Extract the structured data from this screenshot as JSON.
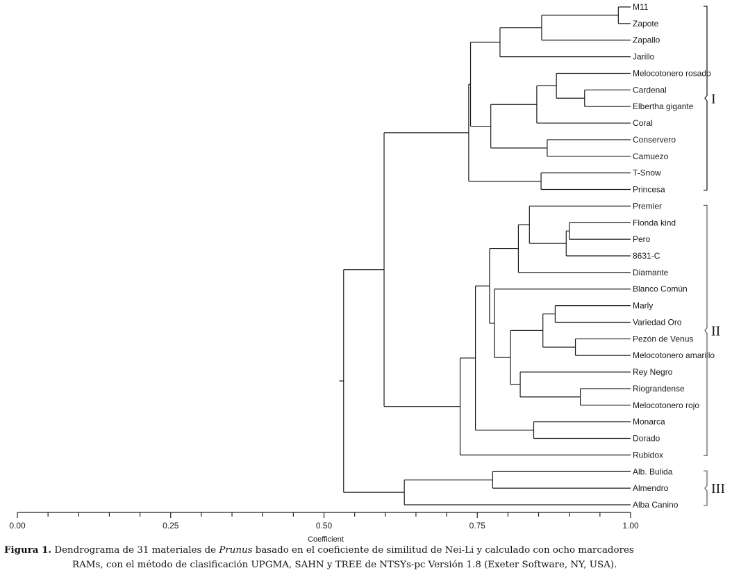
{
  "chart_data": {
    "type": "dendrogram",
    "xlabel": "Coefficient",
    "xlim": [
      0.0,
      1.0
    ],
    "ticks": [
      "0.00",
      "0.25",
      "0.50",
      "0.75",
      "1.00"
    ],
    "minor_tick_step": 0.05,
    "leaves": [
      "M11",
      "Zapote",
      "Zapallo",
      "Jarillo",
      "Melocotonero rosado",
      "Cardenal",
      "Elbertha gigante",
      "Coral",
      "Conservero",
      "Camuezo",
      "T-Snow",
      "Princesa",
      "Premier",
      "Flonda kind",
      "Pero",
      "8631-C",
      "Diamante",
      "Blanco Común",
      "Marly",
      "Variedad Oro",
      "Pezón de Venus",
      "Melocotonero amarillo",
      "Rey Negro",
      "Riograndense",
      "Melocotonero rojo",
      "Monarca",
      "Dorado",
      "Rubidox",
      "Alb. Bulida",
      "Almendro",
      "Alba Canino"
    ],
    "merges": [
      {
        "id": "n1",
        "children": [
          "M11",
          "Zapote"
        ],
        "coefficient": 0.98
      },
      {
        "id": "n2",
        "children": [
          "n1",
          "Zapallo"
        ],
        "coefficient": 0.855
      },
      {
        "id": "n3",
        "children": [
          "n2",
          "Jarillo"
        ],
        "coefficient": 0.787
      },
      {
        "id": "n4",
        "children": [
          "Cardenal",
          "Elbertha gigante"
        ],
        "coefficient": 0.925
      },
      {
        "id": "n5",
        "children": [
          "Melocotonero rosado",
          "n4"
        ],
        "coefficient": 0.879
      },
      {
        "id": "n6",
        "children": [
          "n5",
          "Coral"
        ],
        "coefficient": 0.847
      },
      {
        "id": "n7",
        "children": [
          "Conservero",
          "Camuezo"
        ],
        "coefficient": 0.864
      },
      {
        "id": "n8",
        "children": [
          "n6",
          "n7"
        ],
        "coefficient": 0.772
      },
      {
        "id": "n9",
        "children": [
          "n3",
          "n8"
        ],
        "coefficient": 0.739
      },
      {
        "id": "n10",
        "children": [
          "T-Snow",
          "Princesa"
        ],
        "coefficient": 0.854
      },
      {
        "id": "n11",
        "children": [
          "n9",
          "n10"
        ],
        "coefficient": 0.736
      },
      {
        "id": "n12",
        "children": [
          "Flonda kind",
          "Pero"
        ],
        "coefficient": 0.9
      },
      {
        "id": "n13",
        "children": [
          "n12",
          "8631-C"
        ],
        "coefficient": 0.895
      },
      {
        "id": "n14",
        "children": [
          "Premier",
          "n13"
        ],
        "coefficient": 0.835
      },
      {
        "id": "n15",
        "children": [
          "n14",
          "Diamante"
        ],
        "coefficient": 0.817
      },
      {
        "id": "n16",
        "children": [
          "Marly",
          "Variedad Oro"
        ],
        "coefficient": 0.877
      },
      {
        "id": "n17",
        "children": [
          "Pezón de Venus",
          "Melocotonero amarillo"
        ],
        "coefficient": 0.91
      },
      {
        "id": "n18",
        "children": [
          "n16",
          "n17"
        ],
        "coefficient": 0.857
      },
      {
        "id": "n19",
        "children": [
          "Riograndense",
          "Melocotonero rojo"
        ],
        "coefficient": 0.918
      },
      {
        "id": "n20",
        "children": [
          "Rey Negro",
          "n19"
        ],
        "coefficient": 0.82
      },
      {
        "id": "n21",
        "children": [
          "n18",
          "n20"
        ],
        "coefficient": 0.804
      },
      {
        "id": "n22",
        "children": [
          "Blanco Común",
          "n21"
        ],
        "coefficient": 0.778
      },
      {
        "id": "n23",
        "children": [
          "n15",
          "n22"
        ],
        "coefficient": 0.77
      },
      {
        "id": "n24",
        "children": [
          "Monarca",
          "Dorado"
        ],
        "coefficient": 0.842
      },
      {
        "id": "n25",
        "children": [
          "n23",
          "n24"
        ],
        "coefficient": 0.747
      },
      {
        "id": "n26",
        "children": [
          "n25",
          "Rubidox"
        ],
        "coefficient": 0.722
      },
      {
        "id": "n27",
        "children": [
          "n11",
          "n26"
        ],
        "coefficient": 0.598
      },
      {
        "id": "n28",
        "children": [
          "Alb. Bulida",
          "Almendro"
        ],
        "coefficient": 0.775
      },
      {
        "id": "n29",
        "children": [
          "n28",
          "Alba Canino"
        ],
        "coefficient": 0.631
      },
      {
        "id": "n30",
        "children": [
          "n27",
          "n29"
        ],
        "coefficient": 0.532
      }
    ],
    "clusters": [
      {
        "label": "I",
        "first": "M11",
        "last": "Princesa"
      },
      {
        "label": "II",
        "first": "Premier",
        "last": "Rubidox"
      },
      {
        "label": "III",
        "first": "Alb. Bulida",
        "last": "Alba Canino"
      }
    ]
  },
  "caption": {
    "lead": "Figura 1.",
    "text_before": " Dendrograma de 31 materiales de ",
    "species": "Prunus",
    "text_after": " basado en el coeficiente de similitud de Nei-Li y calculado con ocho marcadores",
    "line2": "RAMs, con el método de clasificación UPGMA, SAHN y TREE de NTSYs-pc Versión 1.8 (Exeter Software, NY, USA)."
  }
}
